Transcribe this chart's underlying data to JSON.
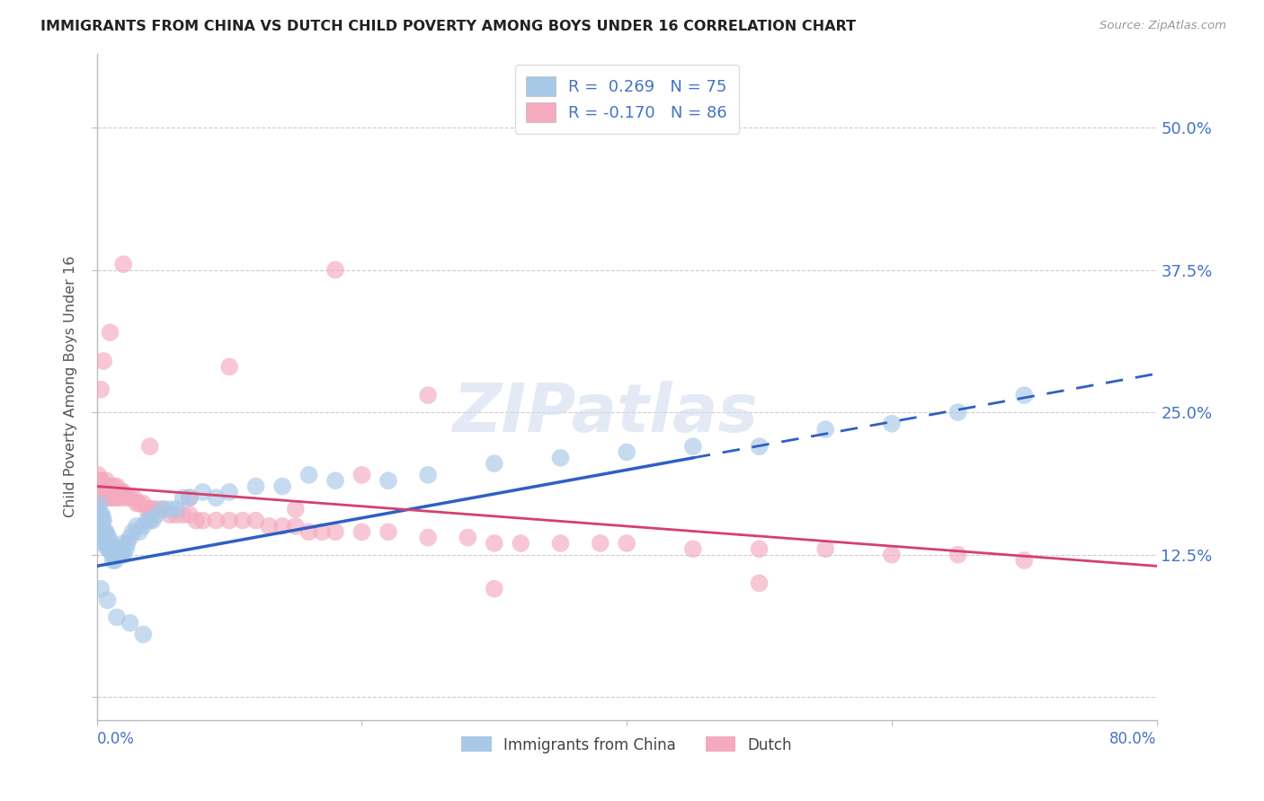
{
  "title": "IMMIGRANTS FROM CHINA VS DUTCH CHILD POVERTY AMONG BOYS UNDER 16 CORRELATION CHART",
  "source": "Source: ZipAtlas.com",
  "ylabel": "Child Poverty Among Boys Under 16",
  "ytick_labels": [
    "",
    "12.5%",
    "25.0%",
    "37.5%",
    "50.0%"
  ],
  "yticks": [
    0.0,
    0.125,
    0.25,
    0.375,
    0.5
  ],
  "xlim": [
    0.0,
    0.8
  ],
  "ylim": [
    -0.02,
    0.565
  ],
  "r_china": 0.269,
  "n_china": 75,
  "r_dutch": -0.17,
  "n_dutch": 86,
  "color_china": "#A8C8E8",
  "color_dutch": "#F4AABF",
  "color_china_line": "#2F5FC4",
  "color_dutch_line": "#D44070",
  "color_labels": "#4472C4",
  "watermark_color": "#D5DFF0",
  "china_line_start_y": 0.115,
  "china_line_end_x": 0.45,
  "china_line_end_y": 0.21,
  "dutch_line_start_y": 0.185,
  "dutch_line_end_x": 0.8,
  "dutch_line_end_y": 0.115,
  "china_x": [
    0.001,
    0.001,
    0.001,
    0.002,
    0.002,
    0.002,
    0.003,
    0.003,
    0.004,
    0.004,
    0.005,
    0.005,
    0.005,
    0.006,
    0.006,
    0.007,
    0.007,
    0.008,
    0.008,
    0.009,
    0.009,
    0.01,
    0.01,
    0.011,
    0.012,
    0.012,
    0.013,
    0.014,
    0.015,
    0.015,
    0.016,
    0.017,
    0.018,
    0.019,
    0.02,
    0.02,
    0.022,
    0.023,
    0.025,
    0.027,
    0.03,
    0.032,
    0.035,
    0.038,
    0.04,
    0.042,
    0.045,
    0.05,
    0.055,
    0.06,
    0.065,
    0.07,
    0.08,
    0.09,
    0.1,
    0.12,
    0.14,
    0.16,
    0.18,
    0.22,
    0.25,
    0.3,
    0.35,
    0.4,
    0.45,
    0.5,
    0.55,
    0.6,
    0.65,
    0.7,
    0.003,
    0.008,
    0.015,
    0.025,
    0.035
  ],
  "china_y": [
    0.155,
    0.14,
    0.165,
    0.17,
    0.155,
    0.14,
    0.16,
    0.155,
    0.16,
    0.155,
    0.135,
    0.145,
    0.155,
    0.145,
    0.14,
    0.145,
    0.135,
    0.14,
    0.13,
    0.14,
    0.13,
    0.135,
    0.13,
    0.13,
    0.125,
    0.12,
    0.125,
    0.12,
    0.13,
    0.125,
    0.125,
    0.13,
    0.125,
    0.125,
    0.135,
    0.125,
    0.13,
    0.135,
    0.14,
    0.145,
    0.15,
    0.145,
    0.15,
    0.155,
    0.155,
    0.155,
    0.16,
    0.165,
    0.165,
    0.165,
    0.175,
    0.175,
    0.18,
    0.175,
    0.18,
    0.185,
    0.185,
    0.195,
    0.19,
    0.19,
    0.195,
    0.205,
    0.21,
    0.215,
    0.22,
    0.22,
    0.235,
    0.24,
    0.25,
    0.265,
    0.095,
    0.085,
    0.07,
    0.065,
    0.055
  ],
  "dutch_x": [
    0.001,
    0.001,
    0.001,
    0.002,
    0.002,
    0.003,
    0.003,
    0.004,
    0.004,
    0.005,
    0.005,
    0.006,
    0.006,
    0.007,
    0.007,
    0.008,
    0.008,
    0.009,
    0.009,
    0.01,
    0.01,
    0.011,
    0.012,
    0.013,
    0.014,
    0.015,
    0.016,
    0.017,
    0.018,
    0.019,
    0.02,
    0.022,
    0.025,
    0.028,
    0.03,
    0.032,
    0.035,
    0.038,
    0.04,
    0.042,
    0.045,
    0.05,
    0.055,
    0.06,
    0.065,
    0.07,
    0.075,
    0.08,
    0.09,
    0.1,
    0.11,
    0.12,
    0.13,
    0.14,
    0.15,
    0.16,
    0.17,
    0.18,
    0.2,
    0.22,
    0.25,
    0.28,
    0.3,
    0.32,
    0.35,
    0.38,
    0.4,
    0.45,
    0.5,
    0.55,
    0.6,
    0.65,
    0.7,
    0.003,
    0.005,
    0.01,
    0.02,
    0.04,
    0.07,
    0.1,
    0.15,
    0.2,
    0.3,
    0.5,
    0.25,
    0.18
  ],
  "dutch_y": [
    0.195,
    0.185,
    0.175,
    0.19,
    0.18,
    0.19,
    0.18,
    0.185,
    0.175,
    0.185,
    0.175,
    0.185,
    0.175,
    0.19,
    0.18,
    0.185,
    0.175,
    0.185,
    0.175,
    0.185,
    0.175,
    0.185,
    0.175,
    0.185,
    0.175,
    0.185,
    0.175,
    0.18,
    0.175,
    0.18,
    0.18,
    0.175,
    0.175,
    0.175,
    0.17,
    0.17,
    0.17,
    0.165,
    0.165,
    0.165,
    0.165,
    0.165,
    0.16,
    0.16,
    0.16,
    0.16,
    0.155,
    0.155,
    0.155,
    0.155,
    0.155,
    0.155,
    0.15,
    0.15,
    0.15,
    0.145,
    0.145,
    0.145,
    0.145,
    0.145,
    0.14,
    0.14,
    0.135,
    0.135,
    0.135,
    0.135,
    0.135,
    0.13,
    0.13,
    0.13,
    0.125,
    0.125,
    0.12,
    0.27,
    0.295,
    0.32,
    0.38,
    0.22,
    0.175,
    0.29,
    0.165,
    0.195,
    0.095,
    0.1,
    0.265,
    0.375
  ]
}
